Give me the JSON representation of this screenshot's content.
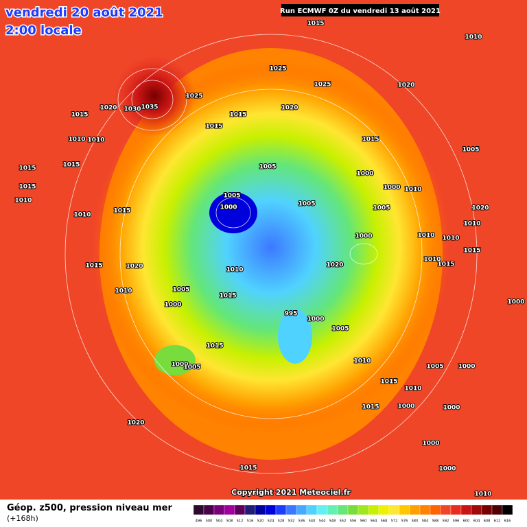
{
  "header": {
    "date": "vendredi 20 août 2021",
    "time": "2:00 locale",
    "run": "Run ECMWF 0Z du vendredi 13 août 2021"
  },
  "isobar_labels": [
    1015,
    1010,
    1025,
    1025,
    1020,
    1020,
    1030,
    1035,
    1025,
    1020,
    1015,
    1015,
    1015,
    1010,
    1010,
    1015,
    1005,
    1015,
    1015,
    1005,
    1000,
    1000,
    1010,
    1015,
    1010,
    1005,
    1000,
    1005,
    1005,
    1020,
    1010,
    1015,
    1010,
    1000,
    1010,
    1010,
    1020,
    1015,
    1010,
    1020,
    1015,
    1015,
    1010,
    1010,
    1005,
    1015,
    995,
    1000,
    1005,
    1000,
    1015,
    1000,
    1005,
    1010,
    1005,
    1000,
    1015,
    1010,
    1000,
    1015,
    1020,
    1015,
    1000,
    1000,
    1000,
    1010,
    1000
  ],
  "copyright": "Copyright 2021 Meteociel.fr",
  "legend": {
    "title": "Géop. z500, pression niveau mer",
    "subtitle": "(+168h)",
    "levels": [
      496,
      500,
      504,
      508,
      512,
      516,
      520,
      524,
      528,
      532,
      536,
      540,
      544,
      548,
      552,
      556,
      560,
      564,
      568,
      572,
      576,
      580,
      584,
      588,
      592,
      596,
      600,
      604,
      608,
      612,
      616
    ],
    "colors": [
      "#2d0a2d",
      "#4b004b",
      "#7a007a",
      "#a000a0",
      "#5a005a",
      "#1e1e78",
      "#0000a0",
      "#0000dc",
      "#1e3cff",
      "#3c78ff",
      "#46aaff",
      "#50d2ff",
      "#64f0f0",
      "#64f0b4",
      "#64e678",
      "#78dc3c",
      "#a0e61e",
      "#c8f000",
      "#f0f000",
      "#ffe632",
      "#ffc800",
      "#ffa000",
      "#ff8200",
      "#ff6400",
      "#f04628",
      "#e62d1e",
      "#c81414",
      "#a00a0a",
      "#780000",
      "#500000",
      "#000000"
    ]
  }
}
